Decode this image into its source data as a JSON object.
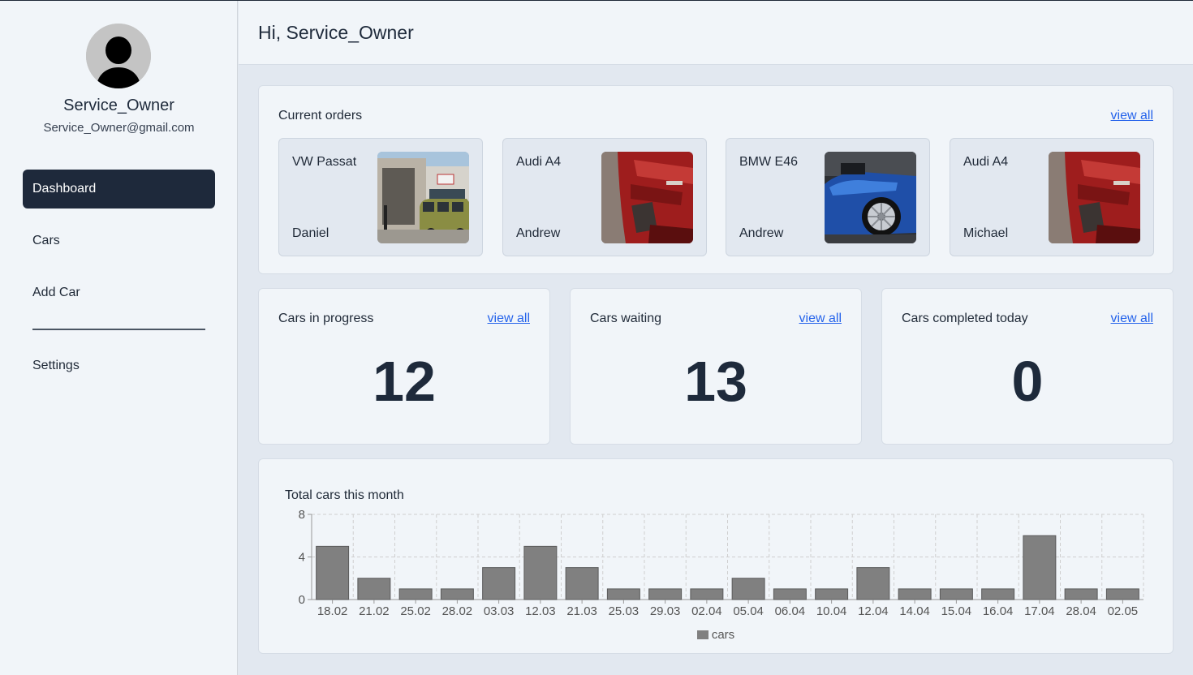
{
  "user": {
    "name": "Service_Owner",
    "email": "Service_Owner@gmail.com"
  },
  "nav": {
    "items": [
      {
        "label": "Dashboard",
        "active": true
      },
      {
        "label": "Cars",
        "active": false
      },
      {
        "label": "Add Car",
        "active": false
      },
      {
        "label": "Settings",
        "active": false
      }
    ]
  },
  "header": {
    "greeting": "Hi, Service_Owner"
  },
  "current_orders": {
    "title": "Current orders",
    "view_all": "view all",
    "orders": [
      {
        "model": "VW Passat",
        "owner": "Daniel"
      },
      {
        "model": "Audi A4",
        "owner": "Andrew"
      },
      {
        "model": "BMW E46",
        "owner": "Andrew"
      },
      {
        "model": "Audi A4",
        "owner": "Michael"
      }
    ]
  },
  "stats": [
    {
      "title": "Cars in progress",
      "value": "12",
      "view_all": "view all"
    },
    {
      "title": "Cars waiting",
      "value": "13",
      "view_all": "view all"
    },
    {
      "title": "Cars completed today",
      "value": "0",
      "view_all": "view all"
    }
  ],
  "chart_title": "Total cars this month",
  "chart_data": {
    "type": "bar",
    "categories": [
      "18.02",
      "21.02",
      "25.02",
      "28.02",
      "03.03",
      "12.03",
      "21.03",
      "25.03",
      "29.03",
      "02.04",
      "05.04",
      "06.04",
      "10.04",
      "12.04",
      "14.04",
      "15.04",
      "16.04",
      "17.04",
      "28.04",
      "02.05"
    ],
    "series": [
      {
        "name": "cars",
        "values": [
          5,
          2,
          1,
          1,
          3,
          5,
          3,
          1,
          1,
          1,
          2,
          1,
          1,
          3,
          1,
          1,
          1,
          6,
          1,
          1
        ]
      }
    ],
    "yticks": [
      0,
      4,
      8
    ],
    "ylim": [
      0,
      8
    ],
    "grid": true,
    "legend": "bottom",
    "bar_color": "#808080"
  },
  "colors": {
    "accent_dark": "#1e293b",
    "link": "#2563eb"
  }
}
